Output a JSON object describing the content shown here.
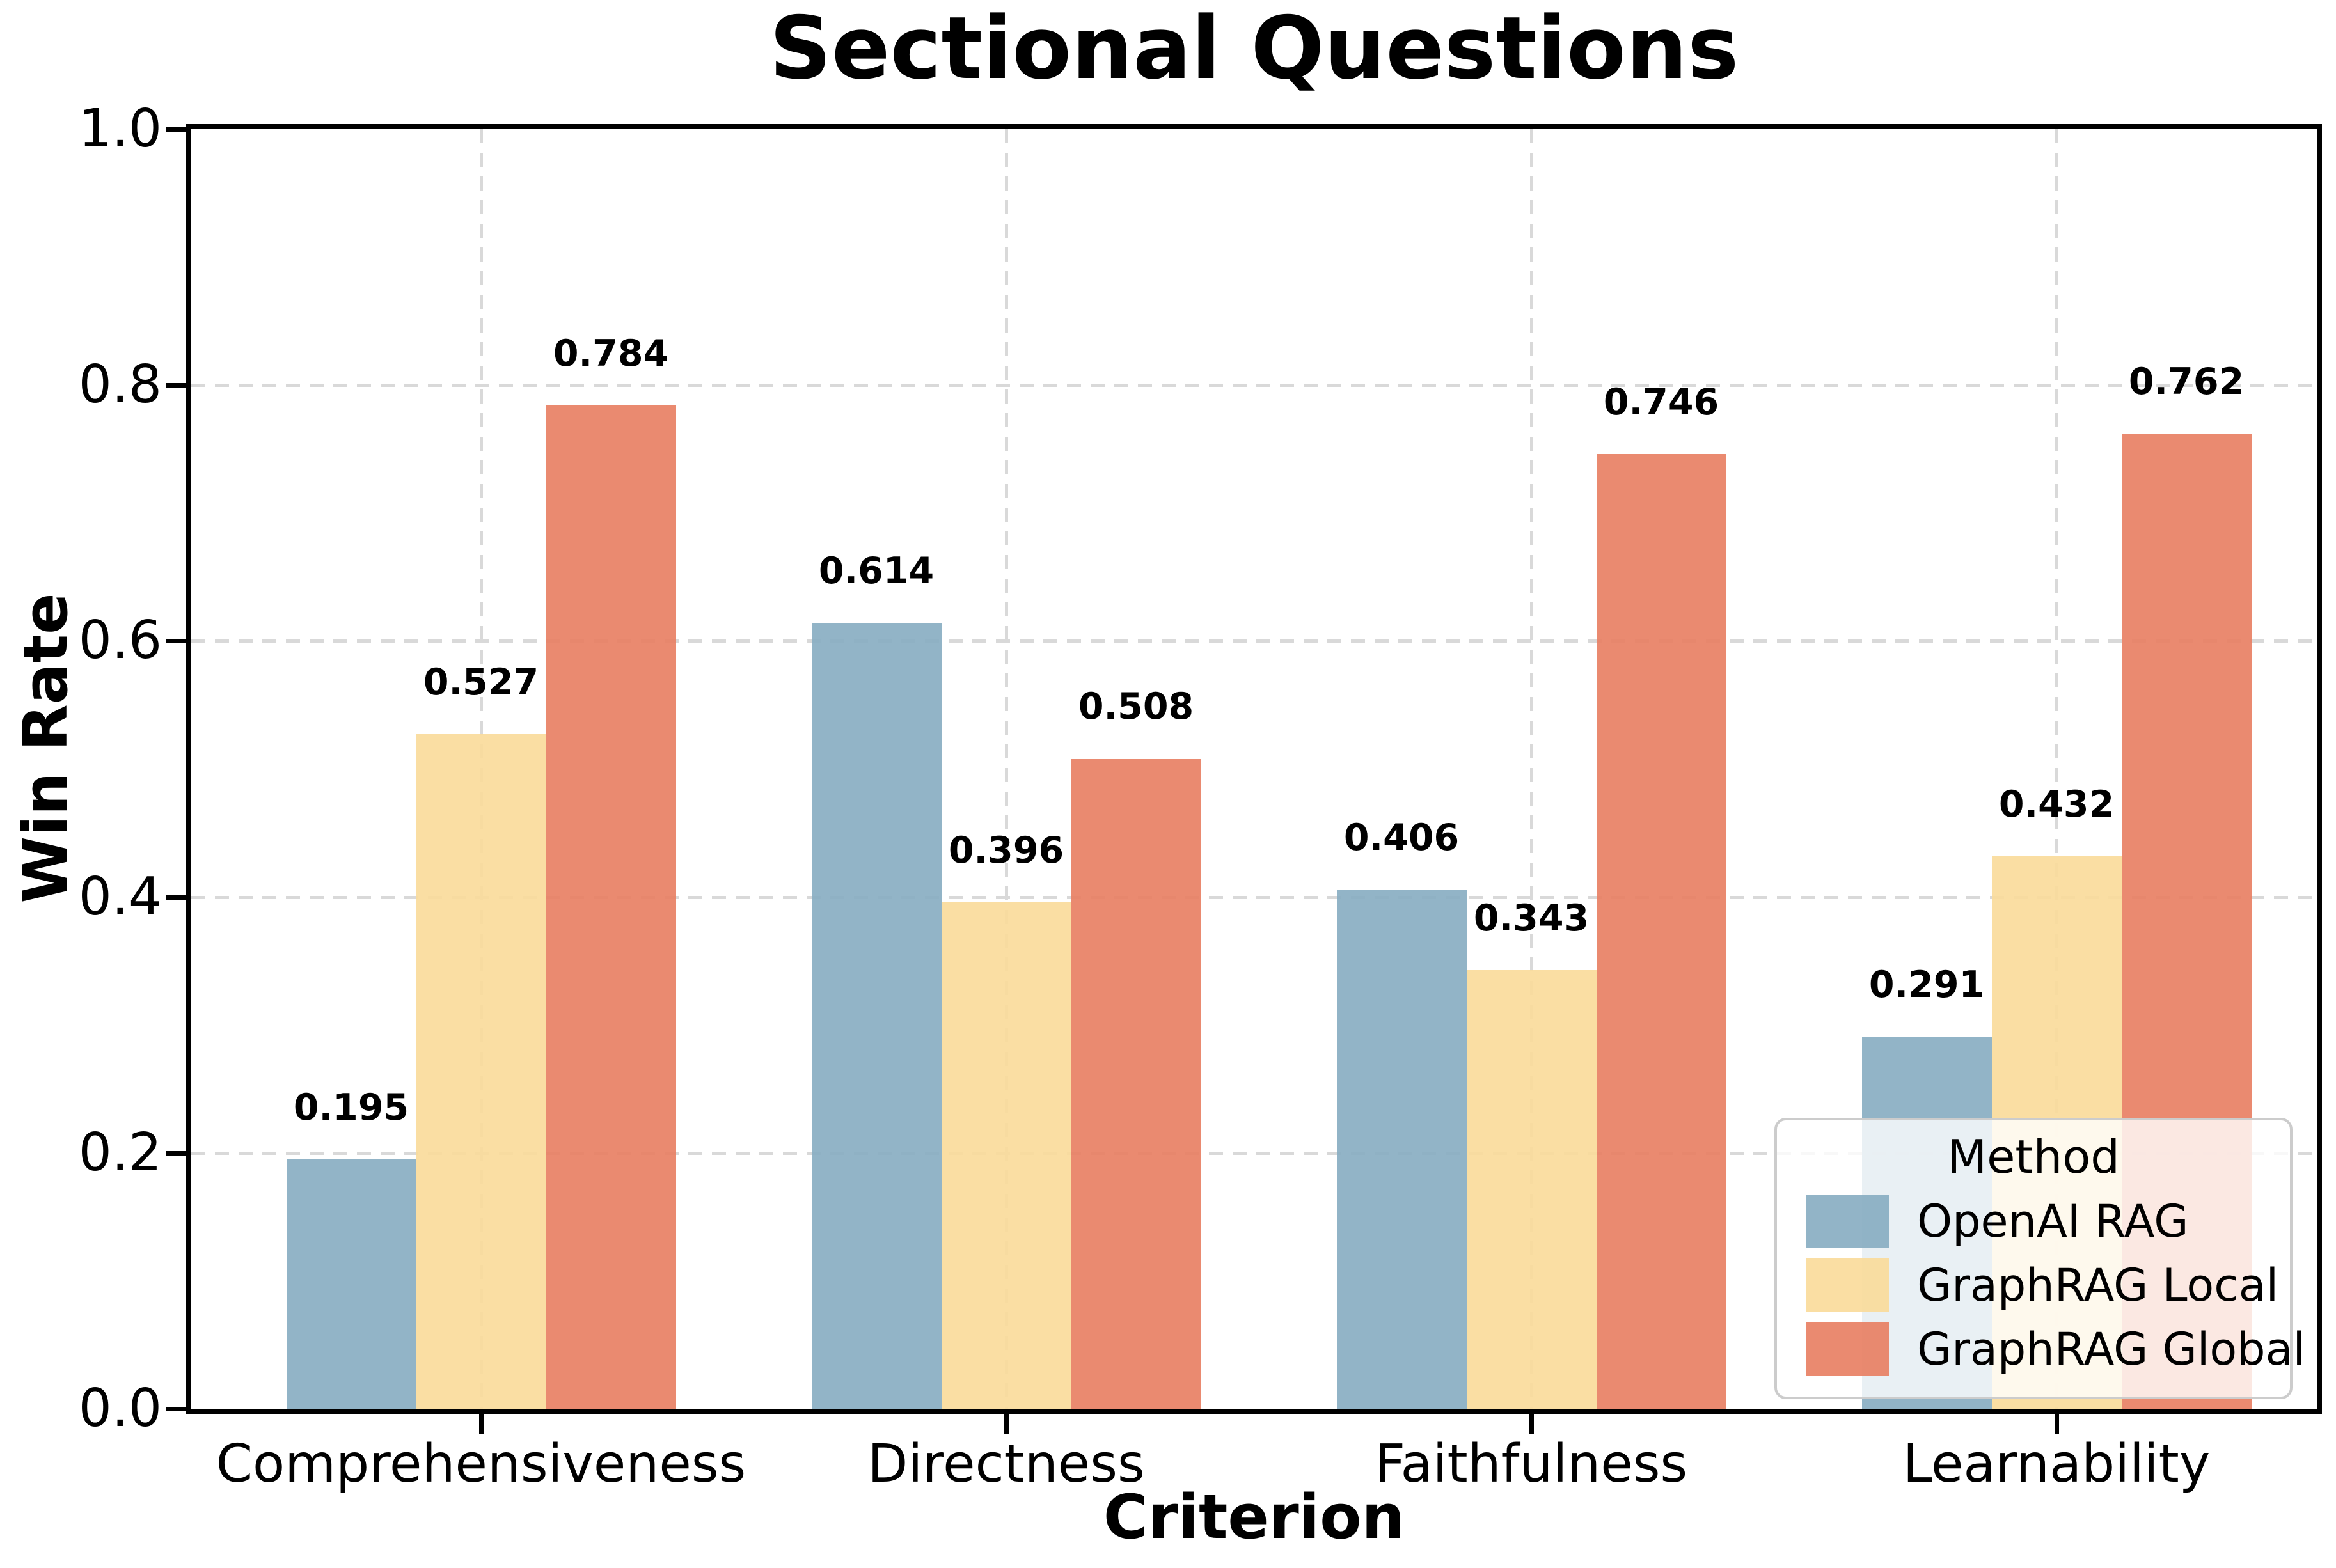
{
  "chart_data": {
    "type": "bar",
    "title": "Sectional Questions",
    "xlabel": "Criterion",
    "ylabel": "Win Rate",
    "categories": [
      "Comprehensiveness",
      "Directness",
      "Faithfulness",
      "Learnability"
    ],
    "series": [
      {
        "name": "OpenAI RAG",
        "color": "#92b4c7",
        "values": [
          0.195,
          0.614,
          0.406,
          0.291
        ]
      },
      {
        "name": "GraphRAG Local",
        "color": "#fadea3",
        "values": [
          0.527,
          0.396,
          0.343,
          0.432
        ]
      },
      {
        "name": "GraphRAG Global",
        "color": "#ea8a70",
        "values": [
          0.784,
          0.508,
          0.746,
          0.762
        ]
      }
    ],
    "ylim": [
      0.0,
      1.0
    ],
    "y_ticks": [
      "0.0",
      "0.2",
      "0.4",
      "0.6",
      "0.8",
      "1.0"
    ],
    "grid": true,
    "grid_style": "dashed",
    "value_label_decimals": 3,
    "legend": {
      "title": "Method",
      "position": "lower right"
    }
  }
}
